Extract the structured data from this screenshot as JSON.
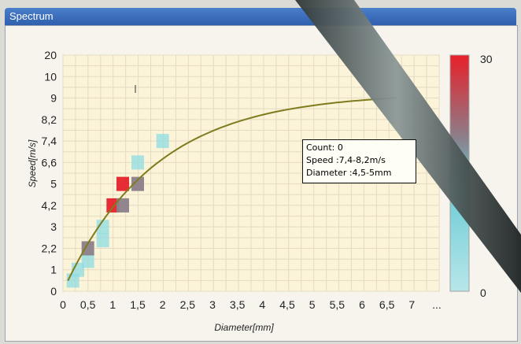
{
  "window": {
    "title": "Spectrum"
  },
  "chart_data": {
    "type": "heatmap",
    "xlabel": "Diameter[mm]",
    "ylabel": "Speed[m/s]",
    "x_ticks": [
      "0",
      "0,5",
      "1",
      "1,5",
      "2",
      "2,5",
      "3",
      "3,5",
      "4",
      "4,5",
      "5",
      "5,5",
      "6",
      "6,5",
      "7",
      "..."
    ],
    "y_ticks": [
      "0",
      "1",
      "2,2",
      "3",
      "4,2",
      "5",
      "6,6",
      "7,4",
      "8,2",
      "9",
      "10",
      "20"
    ],
    "cells": [
      {
        "x": "0,2",
        "y": "0,5",
        "count": 2
      },
      {
        "x": "0,3",
        "y": "1",
        "count": 14
      },
      {
        "x": "0,5",
        "y": "1,5",
        "count": 4
      },
      {
        "x": "0,5",
        "y": "2,2",
        "count": 24
      },
      {
        "x": "0,8",
        "y": "2,5",
        "count": 8
      },
      {
        "x": "0,8",
        "y": "3",
        "count": 5
      },
      {
        "x": "1",
        "y": "4,2",
        "count": 29
      },
      {
        "x": "1,2",
        "y": "4,2",
        "count": 18
      },
      {
        "x": "1,2",
        "y": "5",
        "count": 28
      },
      {
        "x": "1,5",
        "y": "5",
        "count": 18
      },
      {
        "x": "1,5",
        "y": "6,6",
        "count": 7
      },
      {
        "x": "2",
        "y": "7,4",
        "count": 4
      }
    ],
    "colorbar": {
      "min": "0",
      "max": "30",
      "colors": [
        "#9ee0e6",
        "#8c8c96",
        "#e8202a"
      ]
    },
    "curve": "fitted speed–diameter curve"
  },
  "tooltip": {
    "line1": "Count: 0",
    "line2": "Speed :7,4-8,2m/s",
    "line3": "Diameter :4,5-5mm"
  },
  "colors": {
    "plot_bg": "#fbf4d8",
    "grid": "#e9e3cf",
    "curve": "#7f7b1e",
    "cyan": "#8fdce3",
    "red": "#e5212b",
    "gray": "#8b7f8a"
  }
}
